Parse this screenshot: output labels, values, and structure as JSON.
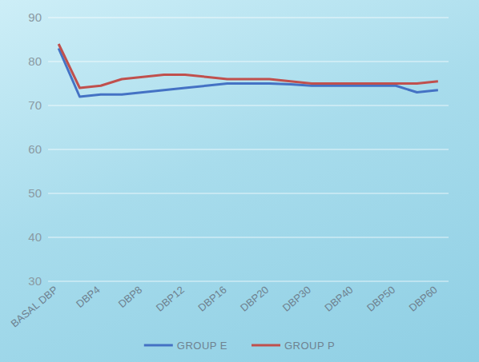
{
  "chart_data": {
    "type": "line",
    "categories": [
      "BASAL DBP",
      null,
      "DBP4",
      null,
      "DBP8",
      null,
      "DBP12",
      null,
      "DBP16",
      null,
      "DBP20",
      null,
      "DBP30",
      null,
      "DBP40",
      null,
      "DBP50",
      null,
      "DBP60"
    ],
    "series": [
      {
        "name": "GROUP E",
        "color": "#4472c4",
        "values": [
          83,
          72,
          72.5,
          72.5,
          73,
          73.5,
          74,
          74.5,
          75,
          75,
          75,
          74.8,
          74.5,
          74.5,
          74.5,
          74.5,
          74.5,
          73,
          73.5
        ]
      },
      {
        "name": "GROUP P",
        "color": "#c0504d",
        "values": [
          84,
          74,
          74.5,
          76,
          76.5,
          77,
          77,
          76.5,
          76,
          76,
          76,
          75.5,
          75,
          75,
          75,
          75,
          75,
          75,
          75.5
        ]
      }
    ],
    "ylim": [
      30,
      90
    ],
    "yticks": [
      30,
      40,
      50,
      60,
      70,
      80,
      90
    ],
    "grid": true,
    "legend": "bottom"
  }
}
